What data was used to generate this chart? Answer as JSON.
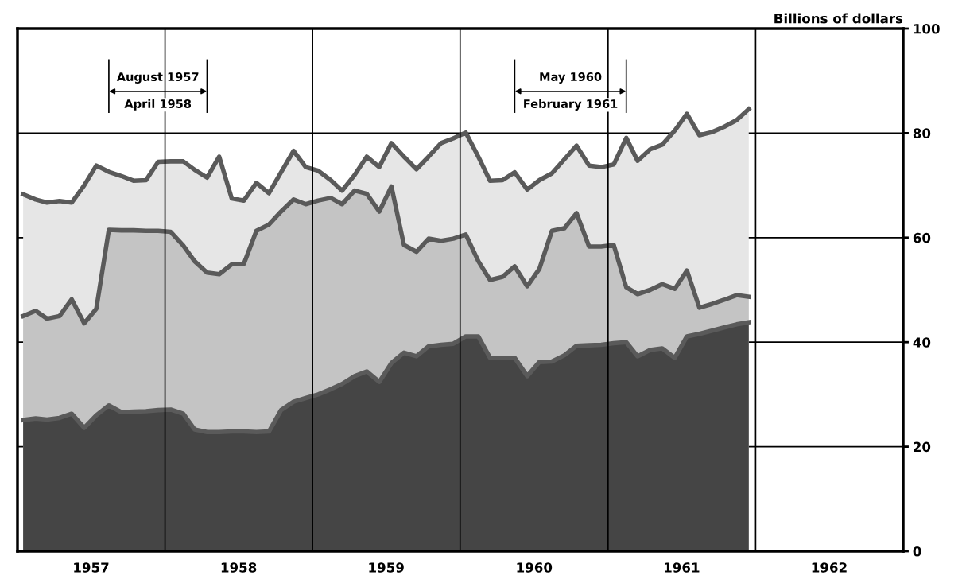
{
  "chart_data": {
    "type": "area",
    "ylabel": "Billions of dollars",
    "x": [
      "1957-01-15",
      "1957-02-15",
      "1957-03-15",
      "1957-04-15",
      "1957-05-15",
      "1957-06-15",
      "1957-07-15",
      "1957-08-15",
      "1957-09-15",
      "1957-10-15",
      "1957-11-15",
      "1957-12-15",
      "1958-01-15",
      "1958-02-15",
      "1958-03-15",
      "1958-04-15",
      "1958-05-15",
      "1958-06-15",
      "1958-07-15",
      "1958-08-15",
      "1958-09-15",
      "1958-10-15",
      "1958-11-15",
      "1958-12-15",
      "1959-01-15",
      "1959-02-15",
      "1959-03-15",
      "1959-04-15",
      "1959-05-15",
      "1959-06-15",
      "1959-07-15",
      "1959-08-15",
      "1959-09-15",
      "1959-10-15",
      "1959-11-15",
      "1959-12-15",
      "1960-01-15",
      "1960-02-15",
      "1960-03-15",
      "1960-04-15",
      "1960-05-15",
      "1960-06-15",
      "1960-07-15",
      "1960-08-15",
      "1960-09-15",
      "1960-10-15",
      "1960-11-15",
      "1960-12-15",
      "1961-01-15",
      "1961-02-15",
      "1961-03-15",
      "1961-04-15",
      "1961-05-15",
      "1961-06-15",
      "1961-07-15",
      "1961-08-15",
      "1961-09-15",
      "1961-10-15",
      "1961-11-15",
      "1961-12-15"
    ],
    "series": [
      {
        "color": "#e6e6e6",
        "values": [
          68.3,
          67.3,
          66.7,
          67.0,
          66.7,
          70,
          73.8,
          72.6,
          71.8,
          70.9,
          71.0,
          74.5,
          74.6,
          74.6,
          73,
          71.5,
          75.5,
          67.5,
          67.1,
          70.5,
          68.5,
          72.5,
          76.6,
          73.5,
          72.8,
          71,
          69,
          72,
          75.5,
          73.5,
          78.1,
          75.5,
          73.1,
          75.5,
          78.1,
          79,
          80.1,
          75.5,
          70.9,
          71,
          72.5,
          69.2,
          71,
          72.3,
          75,
          77.6,
          73.8,
          73.5,
          74,
          79.1,
          74.7,
          76.9,
          77.8,
          80.5,
          83.7,
          79.6,
          80.2,
          81.2,
          82.5,
          84.6
        ]
      },
      {
        "color": "#c4c4c4",
        "values": [
          45,
          46,
          44.5,
          45,
          48.2,
          43.6,
          46.4,
          61.5,
          61.4,
          61.4,
          61.3,
          61.3,
          61.1,
          58.5,
          55.5,
          53.3,
          53,
          54.9,
          55,
          61.3,
          62.5,
          65,
          67.3,
          66.4,
          67.1,
          67.6,
          66.4,
          69,
          68.4,
          65,
          69.8,
          58.6,
          57.3,
          59.8,
          59.4,
          59.8,
          60.6,
          55.5,
          51.9,
          52.5,
          54.5,
          50.7,
          54,
          61.3,
          61.8,
          64.7,
          58.3,
          58.3,
          58.6,
          50.5,
          49.2,
          50,
          51.1,
          50.2,
          53.7,
          46.6,
          47.3,
          48.1,
          49,
          48.7
        ]
      },
      {
        "color": "#454545",
        "values": [
          25.1,
          25.4,
          25.2,
          25.5,
          26.3,
          23.6,
          26,
          27.9,
          26.6,
          26.7,
          26.8,
          27,
          27.1,
          26.3,
          23.3,
          22.8,
          22.8,
          22.9,
          22.9,
          22.8,
          22.9,
          27,
          28.6,
          29.3,
          30,
          31,
          32,
          33.5,
          34.4,
          32.4,
          36,
          38,
          37.3,
          39.2,
          39.5,
          39.7,
          41.1,
          41.1,
          37,
          37,
          37,
          33.5,
          36.2,
          36.3,
          37.5,
          39.3,
          39.4,
          39.5,
          39.8,
          40,
          37.3,
          38.5,
          38.8,
          37,
          41.1,
          41.6,
          42.2,
          42.8,
          43.4,
          43.8
        ]
      }
    ],
    "xlim": [
      "1957-01-01",
      "1963-01-01"
    ],
    "xticks": [
      {
        "value": "1957-07-02",
        "label": "1957"
      },
      {
        "value": "1958-07-02",
        "label": "1958"
      },
      {
        "value": "1959-07-02",
        "label": "1959"
      },
      {
        "value": "1960-07-02",
        "label": "1960"
      },
      {
        "value": "1961-07-02",
        "label": "1961"
      },
      {
        "value": "1962-07-02",
        "label": "1962"
      }
    ],
    "ylim": [
      0,
      100
    ],
    "yticks": [
      0,
      20,
      40,
      60,
      80,
      100
    ],
    "grid": "y",
    "ref_lines": [
      {
        "axis": "x",
        "value": "1958-01-01"
      },
      {
        "axis": "x",
        "value": "1959-01-01"
      },
      {
        "axis": "x",
        "value": "1960-01-01"
      },
      {
        "axis": "x",
        "value": "1961-01-01"
      },
      {
        "axis": "x",
        "value": "1962-01-01"
      },
      {
        "axis": "x",
        "value": "1957-08-15",
        "label": "August 1957"
      },
      {
        "axis": "x",
        "value": "1958-04-15",
        "label": "April 1958"
      },
      {
        "axis": "x",
        "value": "1960-05-15",
        "label": "May 1960"
      },
      {
        "axis": "x",
        "value": "1961-02-15",
        "label": "February 1961"
      }
    ]
  }
}
